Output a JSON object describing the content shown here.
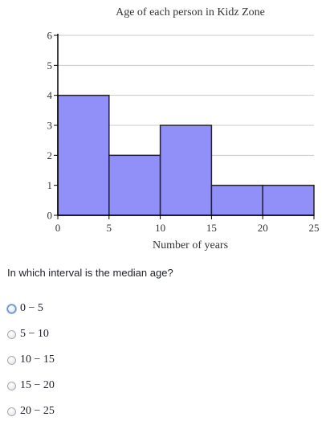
{
  "chart_data": {
    "type": "bar",
    "title": "Age of each person in Kidz Zone",
    "xlabel": "Number of years",
    "ylabel": "",
    "bins": [
      [
        0,
        5
      ],
      [
        5,
        10
      ],
      [
        10,
        15
      ],
      [
        15,
        20
      ],
      [
        20,
        25
      ]
    ],
    "values": [
      4,
      2,
      3,
      1,
      1
    ],
    "x_ticks": [
      "0",
      "5",
      "10",
      "15",
      "20",
      "25"
    ],
    "y_ticks": [
      "0",
      "1",
      "2",
      "3",
      "4",
      "5",
      "6"
    ],
    "xlim": [
      0,
      25
    ],
    "ylim": [
      0,
      6
    ],
    "grid": true,
    "bar_color": "#9090f8",
    "bar_edge_color": "#222222",
    "grid_color": "#c8c8c8"
  },
  "question": {
    "text": "In which interval is the median age?"
  },
  "choices": [
    {
      "label": "0 − 5",
      "focused": true
    },
    {
      "label": "5 − 10",
      "focused": false
    },
    {
      "label": "10 − 15",
      "focused": false
    },
    {
      "label": "15 − 20",
      "focused": false
    },
    {
      "label": "20 − 25",
      "focused": false
    }
  ]
}
